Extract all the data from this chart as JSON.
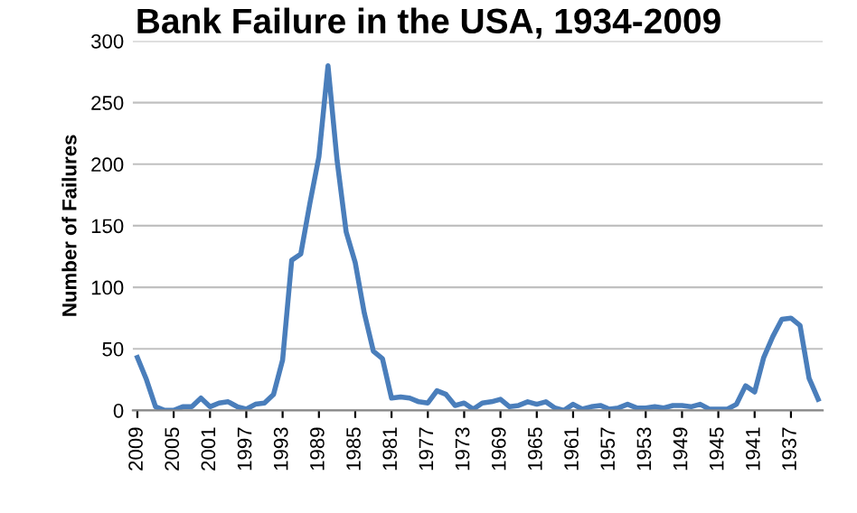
{
  "chart_data": {
    "type": "line",
    "title": "Bank Failure in the USA, 1934-2009",
    "ylabel": "Number of Failures",
    "categories": [
      "2009",
      null,
      null,
      null,
      "2005",
      null,
      null,
      null,
      "2001",
      null,
      null,
      null,
      "1997",
      null,
      null,
      null,
      "1993",
      null,
      null,
      null,
      "1989",
      null,
      null,
      null,
      "1985",
      null,
      null,
      null,
      "1981",
      null,
      null,
      null,
      "1977",
      null,
      null,
      null,
      "1973",
      null,
      null,
      null,
      "1969",
      null,
      null,
      null,
      "1965",
      null,
      null,
      null,
      "1961",
      null,
      null,
      null,
      "1957",
      null,
      null,
      null,
      "1953",
      null,
      null,
      null,
      "1949",
      null,
      null,
      null,
      "1945",
      null,
      null,
      null,
      "1941",
      null,
      null,
      null,
      "1937",
      null,
      null,
      null
    ],
    "series": [
      {
        "color": "#4a7ebb",
        "values": [
          43,
          25,
          3,
          0,
          0,
          3,
          3,
          10,
          3,
          6,
          7,
          3,
          1,
          5,
          6,
          13,
          41,
          122,
          127,
          168,
          206,
          280,
          203,
          145,
          120,
          79,
          48,
          42,
          10,
          11,
          10,
          7,
          6,
          16,
          13,
          4,
          6,
          1,
          6,
          7,
          9,
          3,
          4,
          7,
          5,
          7,
          2,
          0,
          5,
          1,
          3,
          4,
          1,
          2,
          5,
          2,
          2,
          3,
          2,
          4,
          4,
          3,
          5,
          1,
          1,
          1,
          5,
          20,
          15,
          43,
          60,
          74,
          75,
          69,
          26,
          9
        ]
      }
    ],
    "ylim": [
      0,
      300
    ],
    "yticks": [
      0,
      50,
      100,
      150,
      200,
      250,
      300
    ],
    "grid": "y",
    "legend": false,
    "marker": "none",
    "line_style": "solid"
  }
}
